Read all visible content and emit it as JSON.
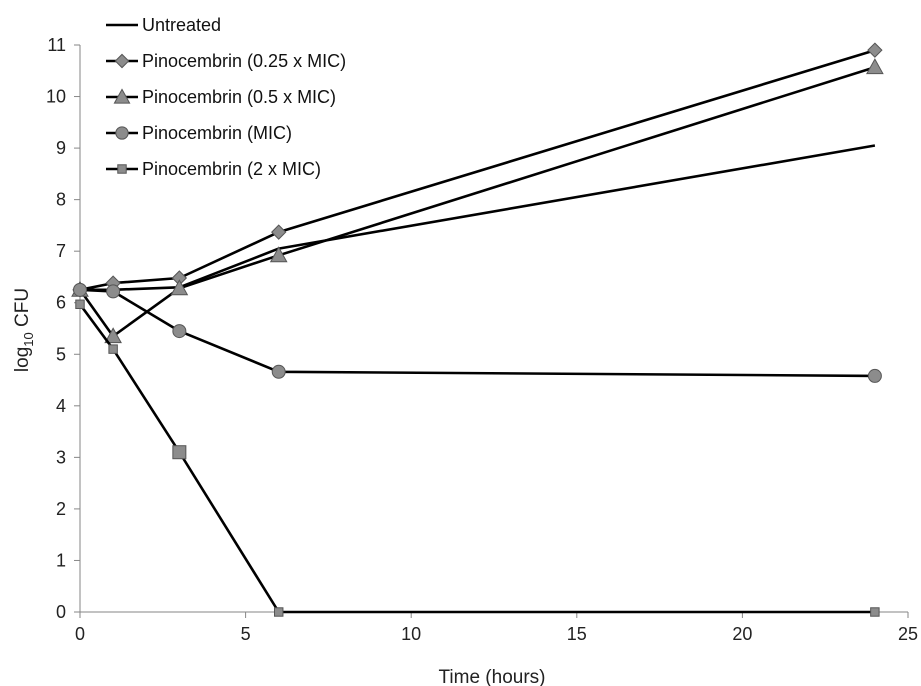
{
  "chart_data": {
    "type": "line",
    "xlabel": "Time (hours)",
    "ylabel_main": "log",
    "ylabel_sub": "10",
    "ylabel_rest": " CFU",
    "xlim": [
      0,
      25
    ],
    "ylim": [
      0,
      11
    ],
    "xticks": [
      0,
      5,
      10,
      15,
      20,
      25
    ],
    "yticks": [
      0,
      1,
      2,
      3,
      4,
      5,
      6,
      7,
      8,
      9,
      10,
      11
    ],
    "grid": false,
    "legend_position": "top-left",
    "line_color": "#000000",
    "marker_color": "#8c8c8c",
    "series": [
      {
        "name": "Untreated",
        "marker": "none",
        "points": [
          [
            0,
            6.25
          ],
          [
            1,
            6.25
          ],
          [
            3,
            6.3
          ],
          [
            6,
            7.05
          ],
          [
            24,
            9.05
          ]
        ]
      },
      {
        "name": "Pinocembrin (0.25 x MIC)",
        "marker": "diamond",
        "points": [
          [
            0,
            6.25
          ],
          [
            1,
            6.38
          ],
          [
            3,
            6.48
          ],
          [
            6,
            7.37
          ],
          [
            24,
            10.9
          ]
        ]
      },
      {
        "name": "Pinocembrin (0.5 x MIC)",
        "marker": "triangle",
        "points": [
          [
            0,
            6.25
          ],
          [
            1,
            5.35
          ],
          [
            3,
            6.28
          ],
          [
            6,
            6.92
          ],
          [
            24,
            10.57
          ]
        ]
      },
      {
        "name": "Pinocembrin (MIC)",
        "marker": "circle",
        "points": [
          [
            0,
            6.25
          ],
          [
            1,
            6.22
          ],
          [
            3,
            5.45
          ],
          [
            6,
            4.66
          ],
          [
            24,
            4.58
          ]
        ]
      },
      {
        "name": "Pinocembrin (2 x MIC)",
        "marker": "square",
        "points": [
          [
            0,
            5.97
          ],
          [
            1,
            5.1
          ],
          [
            3,
            3.1
          ],
          [
            6,
            0
          ],
          [
            24,
            0
          ]
        ]
      }
    ]
  }
}
